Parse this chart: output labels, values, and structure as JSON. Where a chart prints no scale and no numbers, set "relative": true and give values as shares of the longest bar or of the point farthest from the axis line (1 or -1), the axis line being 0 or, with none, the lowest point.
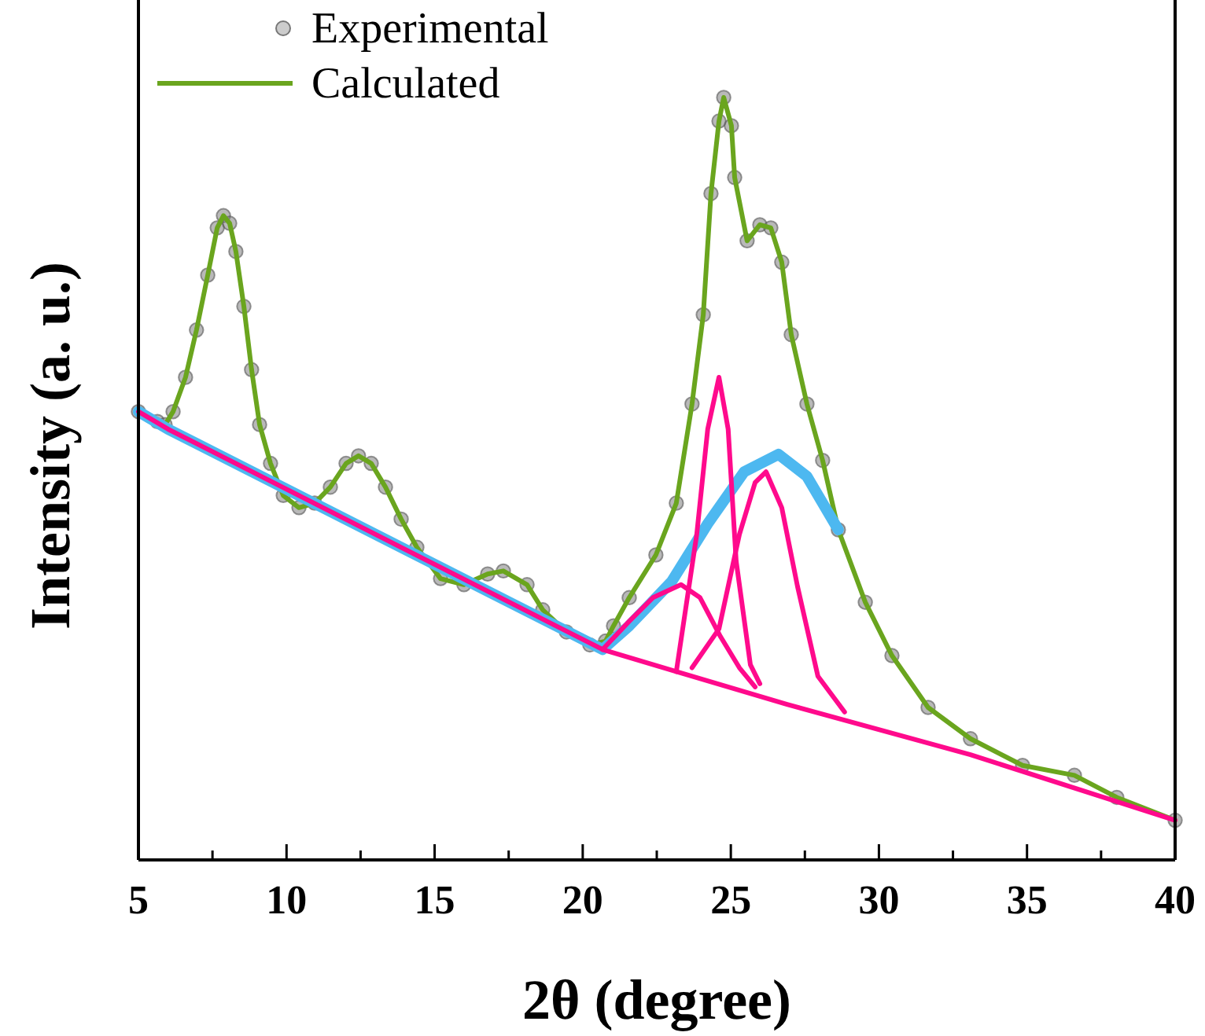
{
  "chart_data": {
    "type": "line",
    "relative": true,
    "xlabel": "2θ (degree)",
    "ylabel": "Intensity (a. u.)",
    "xlim": [
      5,
      40
    ],
    "xticks": [
      5,
      {
        "value": 7.5,
        "label": null
      },
      10,
      {
        "value": 12.5,
        "label": null
      },
      15,
      {
        "value": 17.5,
        "label": null
      },
      20,
      {
        "value": 22.5,
        "label": null
      },
      25,
      {
        "value": 27.5,
        "label": null
      },
      30,
      {
        "value": 32.5,
        "label": null
      },
      35,
      {
        "value": 37.5,
        "label": null
      },
      40
    ],
    "tick_labels": "x",
    "legend": "top left",
    "grid": false,
    "series": [
      {
        "name": "Experimental",
        "type": "scatter",
        "marker": "circle",
        "color": "#7f7f7f",
        "x": [
          5.0,
          5.64,
          5.9,
          6.17,
          6.59,
          6.96,
          7.34,
          7.66,
          7.87,
          8.08,
          8.29,
          8.56,
          8.82,
          9.09,
          9.46,
          9.89,
          10.42,
          10.95,
          11.48,
          12.01,
          12.43,
          12.86,
          13.34,
          13.87,
          14.4,
          15.2,
          15.99,
          16.79,
          17.32,
          18.12,
          18.65,
          19.45,
          20.24,
          20.77,
          21.04,
          21.57,
          22.47,
          23.16,
          23.69,
          24.07,
          24.33,
          24.6,
          24.76,
          25.02,
          25.13,
          25.55,
          25.98,
          26.35,
          26.72,
          27.04,
          27.57,
          28.1,
          28.63,
          29.54,
          30.44,
          31.66,
          33.09,
          34.85,
          36.6,
          38.03,
          40.0
        ],
        "values": [
          0.588,
          0.575,
          0.571,
          0.588,
          0.633,
          0.695,
          0.767,
          0.829,
          0.845,
          0.835,
          0.798,
          0.726,
          0.643,
          0.571,
          0.52,
          0.478,
          0.462,
          0.468,
          0.489,
          0.52,
          0.53,
          0.52,
          0.489,
          0.447,
          0.41,
          0.369,
          0.361,
          0.375,
          0.379,
          0.361,
          0.328,
          0.299,
          0.282,
          0.287,
          0.307,
          0.344,
          0.4,
          0.468,
          0.598,
          0.715,
          0.874,
          0.969,
          1.0,
          0.963,
          0.895,
          0.812,
          0.833,
          0.829,
          0.784,
          0.689,
          0.598,
          0.524,
          0.433,
          0.338,
          0.268,
          0.2,
          0.159,
          0.124,
          0.111,
          0.082,
          0.052
        ]
      },
      {
        "name": "Calculated",
        "color": "#6aa51e",
        "x": [
          5.0,
          5.64,
          5.9,
          6.17,
          6.59,
          6.96,
          7.34,
          7.66,
          7.87,
          8.08,
          8.29,
          8.56,
          8.82,
          9.09,
          9.46,
          9.89,
          10.42,
          10.95,
          11.48,
          12.01,
          12.43,
          12.86,
          13.34,
          13.87,
          14.4,
          15.2,
          15.99,
          16.79,
          17.32,
          18.12,
          18.65,
          19.45,
          20.24,
          20.77,
          21.04,
          21.57,
          22.47,
          23.16,
          23.69,
          24.07,
          24.33,
          24.6,
          24.76,
          25.02,
          25.13,
          25.55,
          25.98,
          26.35,
          26.72,
          27.04,
          27.57,
          28.1,
          28.63,
          29.54,
          30.44,
          31.66,
          33.09,
          34.85,
          36.6,
          38.03,
          40.0
        ],
        "values": [
          0.588,
          0.575,
          0.571,
          0.588,
          0.633,
          0.695,
          0.767,
          0.829,
          0.845,
          0.835,
          0.798,
          0.726,
          0.643,
          0.571,
          0.52,
          0.478,
          0.462,
          0.468,
          0.489,
          0.52,
          0.53,
          0.52,
          0.489,
          0.447,
          0.41,
          0.369,
          0.361,
          0.375,
          0.379,
          0.361,
          0.328,
          0.299,
          0.282,
          0.287,
          0.307,
          0.344,
          0.4,
          0.468,
          0.598,
          0.715,
          0.874,
          0.969,
          1.0,
          0.963,
          0.895,
          0.812,
          0.833,
          0.829,
          0.784,
          0.689,
          0.598,
          0.524,
          0.433,
          0.338,
          0.268,
          0.2,
          0.159,
          0.124,
          0.111,
          0.082,
          0.052
        ]
      },
      {
        "color": "#4db8f0",
        "x": [
          5.0,
          6.0,
          19.3,
          20.67,
          21.57,
          23.0,
          24.22,
          25.45,
          26.61,
          27.57,
          28.63
        ],
        "values": [
          0.588,
          0.565,
          0.303,
          0.276,
          0.307,
          0.365,
          0.441,
          0.509,
          0.532,
          0.503,
          0.433
        ]
      },
      {
        "color": "#ff0a8c",
        "x": [
          5.0,
          6.0,
          19.3,
          20.67,
          23.16,
          26.9,
          33.09,
          40.0
        ],
        "values": [
          0.588,
          0.565,
          0.303,
          0.276,
          0.247,
          0.204,
          0.138,
          0.052
        ]
      },
      {
        "color": "#ff0a8c",
        "x": [
          20.67,
          21.57,
          22.37,
          23.32,
          23.96,
          24.65,
          25.29,
          25.82
        ],
        "values": [
          0.276,
          0.313,
          0.344,
          0.361,
          0.344,
          0.293,
          0.252,
          0.227
        ]
      },
      {
        "color": "#ff0a8c",
        "x": [
          23.16,
          23.85,
          24.22,
          24.6,
          24.91,
          25.18,
          25.66,
          25.98
        ],
        "values": [
          0.247,
          0.427,
          0.565,
          0.633,
          0.565,
          0.392,
          0.256,
          0.231
        ]
      },
      {
        "color": "#ff0a8c",
        "x": [
          23.69,
          24.6,
          25.29,
          25.82,
          26.19,
          26.72,
          27.25,
          27.94,
          28.84
        ],
        "values": [
          0.252,
          0.303,
          0.427,
          0.495,
          0.509,
          0.462,
          0.359,
          0.241,
          0.194
        ]
      }
    ]
  }
}
